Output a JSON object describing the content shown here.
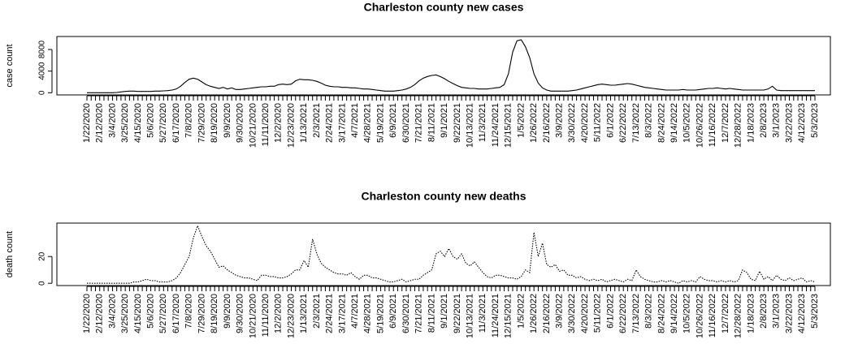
{
  "chart_data": [
    {
      "type": "line",
      "title": "Charleston county new cases",
      "y_label": "case count",
      "ylim": [
        -400,
        10400
      ],
      "yticks": [
        0,
        4000,
        8000
      ],
      "categories": [
        "1/22/2020",
        null,
        null,
        "2/12/2020",
        null,
        null,
        "3/4/2020",
        null,
        null,
        "3/25/2020",
        null,
        null,
        "4/15/2020",
        null,
        null,
        "5/6/2020",
        null,
        null,
        "5/27/2020",
        null,
        null,
        "6/17/2020",
        null,
        null,
        "7/8/2020",
        null,
        null,
        "7/29/2020",
        null,
        null,
        "8/19/2020",
        null,
        null,
        "9/9/2020",
        null,
        null,
        "9/30/2020",
        null,
        null,
        "10/21/2020",
        null,
        null,
        "11/11/2020",
        null,
        null,
        "12/2/2020",
        null,
        null,
        "12/23/2020",
        null,
        null,
        "1/13/2021",
        null,
        null,
        "2/3/2021",
        null,
        null,
        "2/24/2021",
        null,
        null,
        "3/17/2021",
        null,
        null,
        "4/7/2021",
        null,
        null,
        "4/28/2021",
        null,
        null,
        "5/19/2021",
        null,
        null,
        "6/9/2021",
        null,
        null,
        "6/30/2021",
        null,
        null,
        "7/21/2021",
        null,
        null,
        "8/11/2021",
        null,
        null,
        "9/1/2021",
        null,
        null,
        "9/22/2021",
        null,
        null,
        "10/13/2021",
        null,
        null,
        "11/3/2021",
        null,
        null,
        "11/24/2021",
        null,
        null,
        "12/15/2021",
        null,
        null,
        "1/5/2022",
        null,
        null,
        "1/26/2022",
        null,
        null,
        "2/16/2022",
        null,
        null,
        "3/9/2022",
        null,
        null,
        "3/30/2022",
        null,
        null,
        "4/20/2022",
        null,
        null,
        "5/11/2022",
        null,
        null,
        "6/1/2022",
        null,
        null,
        "6/22/2022",
        null,
        null,
        "7/13/2022",
        null,
        null,
        "8/3/2022",
        null,
        null,
        "8/24/2022",
        null,
        null,
        "9/14/2022",
        null,
        null,
        "10/5/2022",
        null,
        null,
        "10/26/2022",
        null,
        null,
        "11/16/2022",
        null,
        null,
        "12/7/2022",
        null,
        null,
        "12/28/2022",
        null,
        null,
        "1/18/2023",
        null,
        null,
        "2/8/2023",
        null,
        null,
        "3/1/2023",
        null,
        null,
        "3/22/2023",
        null,
        null,
        "4/12/2023",
        null,
        null,
        "5/3/2023"
      ],
      "series": [
        {
          "color": "#000000",
          "dash": "solid",
          "values": [
            0,
            0,
            0,
            0,
            0,
            0,
            0,
            50,
            150,
            250,
            300,
            300,
            250,
            250,
            250,
            250,
            300,
            300,
            350,
            400,
            500,
            700,
            1200,
            1900,
            2500,
            2700,
            2500,
            2000,
            1500,
            1200,
            1000,
            800,
            1000,
            700,
            900,
            600,
            600,
            700,
            800,
            900,
            1000,
            1100,
            1100,
            1200,
            1200,
            1500,
            1600,
            1500,
            1600,
            2200,
            2500,
            2400,
            2400,
            2300,
            2100,
            1800,
            1400,
            1200,
            1100,
            1100,
            1000,
            1000,
            900,
            900,
            800,
            700,
            700,
            600,
            500,
            400,
            300,
            300,
            300,
            400,
            500,
            700,
            1000,
            1500,
            2200,
            2700,
            3000,
            3200,
            3300,
            3000,
            2600,
            2100,
            1700,
            1300,
            1000,
            900,
            800,
            800,
            700,
            700,
            700,
            800,
            900,
            1000,
            1500,
            3500,
            7500,
            9600,
            9800,
            8500,
            6500,
            3500,
            1800,
            900,
            500,
            300,
            300,
            300,
            300,
            300,
            400,
            500,
            700,
            900,
            1100,
            1300,
            1500,
            1600,
            1500,
            1400,
            1400,
            1500,
            1600,
            1700,
            1600,
            1400,
            1200,
            1000,
            900,
            800,
            700,
            600,
            500,
            500,
            500,
            500,
            600,
            500,
            500,
            500,
            600,
            700,
            800,
            800,
            900,
            800,
            700,
            800,
            700,
            600,
            500,
            500,
            500,
            500,
            500,
            500,
            700,
            1200,
            500,
            400,
            400,
            400,
            400,
            400,
            400,
            400,
            400,
            400
          ]
        }
      ]
    },
    {
      "type": "line",
      "title": "Charleston county new deaths",
      "y_label": "death count",
      "ylim": [
        -1.7,
        45
      ],
      "yticks": [
        0,
        20
      ],
      "categories": [
        "1/22/2020",
        null,
        null,
        "2/12/2020",
        null,
        null,
        "3/4/2020",
        null,
        null,
        "3/25/2020",
        null,
        null,
        "4/15/2020",
        null,
        null,
        "5/6/2020",
        null,
        null,
        "5/27/2020",
        null,
        null,
        "6/17/2020",
        null,
        null,
        "7/8/2020",
        null,
        null,
        "7/29/2020",
        null,
        null,
        "8/19/2020",
        null,
        null,
        "9/9/2020",
        null,
        null,
        "9/30/2020",
        null,
        null,
        "10/21/2020",
        null,
        null,
        "11/11/2020",
        null,
        null,
        "12/2/2020",
        null,
        null,
        "12/23/2020",
        null,
        null,
        "1/13/2021",
        null,
        null,
        "2/3/2021",
        null,
        null,
        "2/24/2021",
        null,
        null,
        "3/17/2021",
        null,
        null,
        "4/7/2021",
        null,
        null,
        "4/28/2021",
        null,
        null,
        "5/19/2021",
        null,
        null,
        "6/9/2021",
        null,
        null,
        "6/30/2021",
        null,
        null,
        "7/21/2021",
        null,
        null,
        "8/11/2021",
        null,
        null,
        "9/1/2021",
        null,
        null,
        "9/22/2021",
        null,
        null,
        "10/13/2021",
        null,
        null,
        "11/3/2021",
        null,
        null,
        "11/24/2021",
        null,
        null,
        "12/15/2021",
        null,
        null,
        "1/5/2022",
        null,
        null,
        "1/26/2022",
        null,
        null,
        "2/16/2022",
        null,
        null,
        "3/9/2022",
        null,
        null,
        "3/30/2022",
        null,
        null,
        "4/20/2022",
        null,
        null,
        "5/11/2022",
        null,
        null,
        "6/1/2022",
        null,
        null,
        "6/22/2022",
        null,
        null,
        "7/13/2022",
        null,
        null,
        "8/3/2022",
        null,
        null,
        "8/24/2022",
        null,
        null,
        "9/14/2022",
        null,
        null,
        "10/5/2022",
        null,
        null,
        "10/26/2022",
        null,
        null,
        "11/16/2022",
        null,
        null,
        "12/7/2022",
        null,
        null,
        "12/28/2022",
        null,
        null,
        "1/18/2023",
        null,
        null,
        "2/8/2023",
        null,
        null,
        "3/1/2023",
        null,
        null,
        "3/22/2023",
        null,
        null,
        "4/12/2023",
        null,
        null,
        "5/3/2023"
      ],
      "series": [
        {
          "color": "#000000",
          "dash": "dotted",
          "values": [
            0,
            0,
            0,
            0,
            0,
            0,
            0,
            0,
            0,
            0,
            0,
            1,
            1,
            2,
            3,
            2,
            2,
            1,
            1,
            1,
            2,
            4,
            8,
            14,
            20,
            34,
            43,
            35,
            28,
            24,
            18,
            12,
            13,
            10,
            8,
            6,
            5,
            4,
            4,
            3,
            2,
            6,
            6,
            5,
            5,
            4,
            4,
            5,
            7,
            10,
            10,
            17,
            12,
            33,
            22,
            15,
            12,
            10,
            8,
            7,
            7,
            6,
            8,
            5,
            3,
            6,
            6,
            4,
            4,
            3,
            2,
            1,
            1,
            2,
            3,
            1,
            2,
            3,
            3,
            6,
            8,
            10,
            22,
            24,
            20,
            26,
            20,
            18,
            22,
            15,
            13,
            16,
            12,
            8,
            5,
            4,
            6,
            6,
            5,
            4,
            4,
            3,
            5,
            10,
            8,
            38,
            20,
            30,
            14,
            12,
            14,
            9,
            10,
            6,
            6,
            4,
            5,
            3,
            2,
            3,
            2,
            3,
            1,
            2,
            3,
            2,
            1,
            3,
            2,
            10,
            5,
            3,
            2,
            1,
            1,
            2,
            1,
            2,
            1,
            0,
            2,
            1,
            2,
            1,
            5,
            3,
            2,
            2,
            1,
            2,
            1,
            2,
            1,
            2,
            10,
            8,
            3,
            2,
            9,
            3,
            5,
            2,
            6,
            3,
            2,
            4,
            2,
            3,
            4,
            1,
            2,
            1
          ]
        }
      ]
    }
  ]
}
